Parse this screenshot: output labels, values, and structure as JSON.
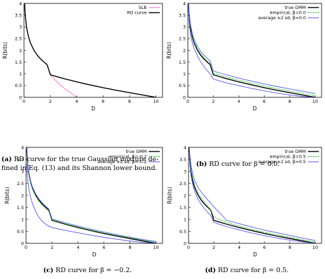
{
  "chart_data": [
    {
      "type": "line",
      "xlabel": "D",
      "ylabel": "R(bits)",
      "xlim": [
        0,
        10.5
      ],
      "ylim": [
        0,
        4
      ],
      "xticks": [
        "0",
        "2",
        "4",
        "6",
        "8",
        "10"
      ],
      "yticks": [
        "0",
        "0.5",
        "1",
        "1.5",
        "2",
        "2.5",
        "3",
        "3.5",
        "4"
      ],
      "legend_position": "top-right",
      "caption_tag": "(a)",
      "caption_line1": "RD curve for the true Gaussian mixture de-",
      "caption_line2": "fined in Eq. (13) and its Shannon lower bound.",
      "series": [
        {
          "name": "SLB",
          "color": "#ff66cc",
          "dash": "",
          "x": [
            0.02,
            0.05,
            0.1,
            0.2,
            0.35,
            0.5,
            0.75,
            1.0,
            1.25,
            1.5,
            1.75,
            2.0,
            2.25,
            2.5,
            2.75,
            3.0,
            3.25,
            3.5,
            3.75,
            4.0
          ],
          "y": [
            4.0,
            3.96,
            3.46,
            2.96,
            2.56,
            2.3,
            2.01,
            1.8,
            1.64,
            1.51,
            1.39,
            0.96,
            0.8,
            0.66,
            0.53,
            0.41,
            0.3,
            0.21,
            0.1,
            0.0
          ]
        },
        {
          "name": "RD curve",
          "color": "#000000",
          "dash": "",
          "x": [
            0.02,
            0.05,
            0.1,
            0.2,
            0.35,
            0.5,
            0.75,
            1.0,
            1.25,
            1.5,
            1.75,
            2.0,
            2.5,
            3,
            4,
            5,
            6,
            7,
            8,
            9,
            10
          ],
          "y": [
            4.0,
            3.96,
            3.46,
            2.96,
            2.56,
            2.3,
            2.01,
            1.8,
            1.64,
            1.51,
            1.39,
            0.96,
            0.88,
            0.8,
            0.66,
            0.53,
            0.41,
            0.3,
            0.2,
            0.1,
            0.0
          ]
        }
      ]
    },
    {
      "type": "line",
      "xlabel": "D",
      "ylabel": "R(bits)",
      "xlim": [
        0,
        10.5
      ],
      "ylim": [
        0,
        4
      ],
      "xticks": [
        "0",
        "2",
        "4",
        "6",
        "8",
        "10"
      ],
      "yticks": [
        "0",
        "0.5",
        "1",
        "1.5",
        "2",
        "2.5",
        "3",
        "3.5",
        "4"
      ],
      "legend_position": "top-right",
      "caption_tag": "(b)",
      "caption_line1": "RD curve for β = 0.0.",
      "caption_line2": "",
      "series": [
        {
          "name": "true GMM",
          "color": "#000000",
          "dash": "",
          "x": [
            0.05,
            0.1,
            0.2,
            0.35,
            0.5,
            0.75,
            1.0,
            1.25,
            1.5,
            1.75,
            2.0,
            2.5,
            3,
            4,
            5,
            6,
            7,
            8,
            9,
            10
          ],
          "y": [
            3.96,
            3.46,
            2.96,
            2.56,
            2.3,
            2.01,
            1.8,
            1.64,
            1.51,
            1.39,
            0.96,
            0.88,
            0.8,
            0.66,
            0.53,
            0.41,
            0.3,
            0.2,
            0.1,
            0.0
          ]
        },
        {
          "name": "empirical, β=0.0",
          "color": "#00bb00",
          "dash": "2,1.5",
          "x": [
            0.05,
            0.1,
            0.2,
            0.35,
            0.5,
            0.75,
            1.0,
            1.25,
            1.5,
            1.75,
            2.0,
            2.5,
            3,
            4,
            5,
            6,
            7,
            8,
            9,
            10
          ],
          "y": [
            4.0,
            3.52,
            3.02,
            2.62,
            2.36,
            2.07,
            1.86,
            1.7,
            1.57,
            1.45,
            1.03,
            0.95,
            0.87,
            0.73,
            0.6,
            0.48,
            0.37,
            0.27,
            0.17,
            0.07
          ]
        },
        {
          "name": "average ±2 sd, β=0.0",
          "color": "#5555ee",
          "dash": "",
          "x": [
            0.05,
            0.1,
            0.2,
            0.35,
            0.5,
            0.75,
            1.0,
            1.25,
            1.5,
            1.75,
            2.0,
            2.5,
            3,
            4,
            5,
            6,
            7,
            8,
            9,
            10
          ],
          "y": [
            4.0,
            3.6,
            3.12,
            2.72,
            2.46,
            2.17,
            1.96,
            1.8,
            1.67,
            1.55,
            1.12,
            1.04,
            0.96,
            0.82,
            0.69,
            0.57,
            0.46,
            0.36,
            0.26,
            0.16
          ]
        },
        {
          "name": "",
          "color": "#5555ee",
          "dash": "",
          "x": [
            0.05,
            0.1,
            0.2,
            0.35,
            0.5,
            0.75,
            1.0,
            1.25,
            1.5,
            1.75,
            2.0,
            2.5,
            3,
            4,
            5,
            6,
            7,
            8,
            9,
            10
          ],
          "y": [
            3.7,
            3.2,
            2.7,
            2.32,
            2.06,
            1.76,
            1.52,
            1.32,
            1.15,
            1.0,
            0.78,
            0.7,
            0.62,
            0.5,
            0.38,
            0.28,
            0.18,
            0.1,
            0.04,
            0.0
          ]
        }
      ]
    },
    {
      "type": "line",
      "xlabel": "D",
      "ylabel": "R(bits)",
      "xlim": [
        0,
        10.5
      ],
      "ylim": [
        0,
        4
      ],
      "xticks": [
        "0",
        "2",
        "4",
        "6",
        "8",
        "10"
      ],
      "yticks": [
        "0",
        "0.5",
        "1",
        "1.5",
        "2",
        "2.5",
        "3",
        "3.5",
        "4"
      ],
      "legend_position": "top-right",
      "caption_tag": "(c)",
      "caption_line1": "RD curve for β = −0.2.",
      "caption_line2": "",
      "series": [
        {
          "name": "true GMM",
          "color": "#000000",
          "dash": "",
          "x": [
            0.05,
            0.1,
            0.2,
            0.35,
            0.5,
            0.75,
            1.0,
            1.25,
            1.5,
            1.75,
            2.0,
            2.5,
            3,
            4,
            5,
            6,
            7,
            8,
            9,
            10
          ],
          "y": [
            3.96,
            3.46,
            2.96,
            2.56,
            2.3,
            2.01,
            1.8,
            1.64,
            1.51,
            1.39,
            0.96,
            0.88,
            0.8,
            0.66,
            0.53,
            0.41,
            0.3,
            0.2,
            0.1,
            0.0
          ]
        },
        {
          "name": "empirical, β=-0.2",
          "color": "#00bb00",
          "dash": "2,1.5",
          "x": [
            0.05,
            0.1,
            0.2,
            0.35,
            0.5,
            0.75,
            1.0,
            1.25,
            1.5,
            1.75,
            2.0,
            2.5,
            3,
            4,
            5,
            6,
            7,
            8,
            9,
            10
          ],
          "y": [
            3.9,
            3.4,
            2.9,
            2.5,
            2.24,
            1.95,
            1.74,
            1.58,
            1.45,
            1.33,
            0.98,
            0.9,
            0.82,
            0.68,
            0.55,
            0.43,
            0.33,
            0.23,
            0.14,
            0.05
          ]
        },
        {
          "name": "average ±2 sd, β=-0.2",
          "color": "#5555ee",
          "dash": "",
          "x": [
            0.05,
            0.1,
            0.2,
            0.35,
            0.5,
            0.75,
            1.0,
            1.25,
            1.5,
            1.75,
            2.0,
            2.5,
            3,
            4,
            5,
            6,
            7,
            8,
            9,
            10
          ],
          "y": [
            4.0,
            3.5,
            3.0,
            2.6,
            2.34,
            2.05,
            1.84,
            1.68,
            1.55,
            1.43,
            1.02,
            0.94,
            0.86,
            0.72,
            0.59,
            0.47,
            0.36,
            0.26,
            0.16,
            0.08
          ]
        },
        {
          "name": "",
          "color": "#5555ee",
          "dash": "",
          "x": [
            0.05,
            0.1,
            0.2,
            0.35,
            0.5,
            0.75,
            1.0,
            1.25,
            1.5,
            1.75,
            2.0,
            2.5,
            3,
            4,
            5,
            6,
            7,
            8,
            9,
            10
          ],
          "y": [
            3.3,
            2.8,
            2.3,
            1.92,
            1.64,
            1.32,
            1.08,
            0.92,
            0.8,
            0.72,
            0.66,
            0.6,
            0.54,
            0.44,
            0.34,
            0.25,
            0.17,
            0.1,
            0.04,
            0.0
          ]
        }
      ]
    },
    {
      "type": "line",
      "xlabel": "D",
      "ylabel": "R(bits)",
      "xlim": [
        0,
        10.5
      ],
      "ylim": [
        0,
        4
      ],
      "xticks": [
        "0",
        "2",
        "4",
        "6",
        "8",
        "10"
      ],
      "yticks": [
        "0",
        "0.5",
        "1",
        "1.5",
        "2",
        "2.5",
        "3",
        "3.5",
        "4"
      ],
      "legend_position": "top-right",
      "caption_tag": "(d)",
      "caption_line1": "RD curve for β = 0.5.",
      "caption_line2": "",
      "series": [
        {
          "name": "true GMM",
          "color": "#000000",
          "dash": "",
          "x": [
            0.05,
            0.1,
            0.2,
            0.35,
            0.5,
            0.75,
            1.0,
            1.25,
            1.5,
            1.75,
            2.0,
            2.5,
            3,
            4,
            5,
            6,
            7,
            8,
            9,
            10
          ],
          "y": [
            3.96,
            3.46,
            2.96,
            2.56,
            2.3,
            2.01,
            1.8,
            1.64,
            1.51,
            1.39,
            0.96,
            0.88,
            0.8,
            0.66,
            0.53,
            0.41,
            0.3,
            0.2,
            0.1,
            0.0
          ]
        },
        {
          "name": "empirical, β=0.5",
          "color": "#00bb00",
          "dash": "2,1.5",
          "x": [
            0.05,
            0.1,
            0.2,
            0.35,
            0.5,
            0.75,
            1.0,
            1.25,
            1.5,
            1.75,
            2.0,
            2.5,
            3,
            4,
            5,
            6,
            7,
            8,
            9,
            10
          ],
          "y": [
            4.0,
            3.55,
            3.05,
            2.66,
            2.4,
            2.11,
            1.9,
            1.72,
            1.55,
            1.4,
            1.1,
            0.98,
            0.88,
            0.72,
            0.58,
            0.46,
            0.35,
            0.25,
            0.15,
            0.06
          ]
        },
        {
          "name": "average ±2 sd, β=0.5",
          "color": "#5555ee",
          "dash": "",
          "x": [
            0.05,
            0.1,
            0.2,
            0.35,
            0.5,
            0.75,
            1.0,
            1.25,
            1.5,
            1.75,
            2.0,
            2.5,
            3,
            4,
            5,
            6,
            7,
            8,
            9,
            10
          ],
          "y": [
            4.0,
            3.7,
            3.22,
            2.84,
            2.6,
            2.33,
            2.14,
            1.98,
            1.82,
            1.68,
            1.52,
            1.25,
            0.96,
            0.82,
            0.68,
            0.55,
            0.44,
            0.33,
            0.22,
            0.12
          ]
        },
        {
          "name": "",
          "color": "#5555ee",
          "dash": "",
          "x": [
            0.05,
            0.1,
            0.2,
            0.35,
            0.5,
            0.75,
            1.0,
            1.25,
            1.5,
            1.75,
            2.0,
            2.5,
            3,
            4,
            5,
            6,
            7,
            8,
            9,
            10
          ],
          "y": [
            3.8,
            3.3,
            2.8,
            2.4,
            2.14,
            1.84,
            1.62,
            1.45,
            1.3,
            1.16,
            0.88,
            0.78,
            0.7,
            0.56,
            0.43,
            0.32,
            0.22,
            0.13,
            0.06,
            0.0
          ]
        }
      ]
    }
  ]
}
